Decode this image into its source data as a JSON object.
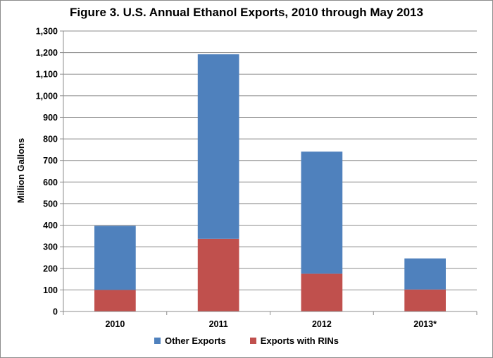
{
  "colors": {
    "other_exports": "#4f81bd",
    "exports_with_rins": "#c0504d",
    "gridline": "#8c8c8c",
    "axis": "#8c8c8c"
  },
  "chart_data": {
    "type": "bar",
    "stacked": true,
    "title": "Figure 3. U.S. Annual Ethanol Exports, 2010 through May 2013",
    "xlabel": "",
    "ylabel": "Million Gallons",
    "categories": [
      "2010",
      "2011",
      "2012",
      "2013*"
    ],
    "ylim": [
      0,
      1300
    ],
    "yticks": [
      0,
      100,
      200,
      300,
      400,
      500,
      600,
      700,
      800,
      900,
      1000,
      1100,
      1200,
      1300
    ],
    "ytick_labels": [
      "0",
      "100",
      "200",
      "300",
      "400",
      "500",
      "600",
      "700",
      "800",
      "900",
      "1,000",
      "1,100",
      "1,200",
      "1,300"
    ],
    "grid": true,
    "legend_position": "bottom",
    "series": [
      {
        "name": "Exports with RINs",
        "values": [
          100,
          337,
          175,
          102
        ]
      },
      {
        "name": "Other Exports",
        "values": [
          297,
          855,
          566,
          144
        ]
      }
    ],
    "legend": [
      "Other Exports",
      "Exports with RINs"
    ]
  }
}
